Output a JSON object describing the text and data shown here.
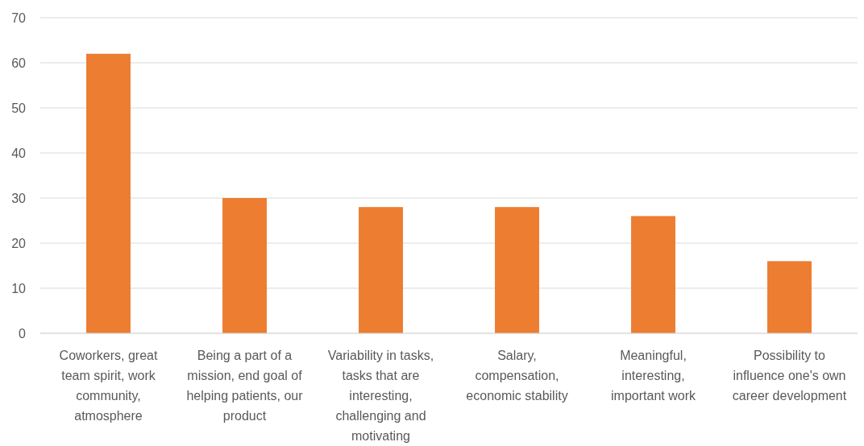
{
  "chart_data": {
    "type": "bar",
    "categories": [
      "Coworkers, great team spirit, work community, atmosphere",
      "Being a part of a mission, end goal of helping patients, our product",
      "Variability in tasks, tasks that are interesting, challenging and motivating",
      "Salary, compensation, economic stability",
      "Meaningful, interesting, important work",
      "Possibility to influence one's own career development"
    ],
    "values": [
      62,
      30,
      28,
      28,
      26,
      16
    ],
    "color": "#ed7d31",
    "ylim": [
      0,
      70
    ],
    "yticks": [
      0,
      10,
      20,
      30,
      40,
      50,
      60,
      70
    ],
    "grid": true
  }
}
